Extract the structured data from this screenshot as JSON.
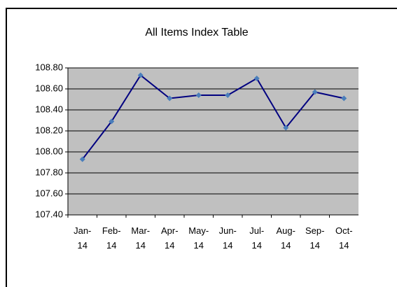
{
  "chart_data": {
    "type": "line",
    "title": "All Items Index Table",
    "categories": [
      "Jan-14",
      "Feb-14",
      "Mar-14",
      "Apr-14",
      "May-14",
      "Jun-14",
      "Jul-14",
      "Aug-14",
      "Sep-14",
      "Oct-14"
    ],
    "series": [
      {
        "color": "#000080",
        "marker_color": "#4a7ebb",
        "values": [
          107.93,
          108.29,
          108.73,
          108.51,
          108.54,
          108.54,
          108.7,
          108.23,
          108.57,
          108.51
        ]
      }
    ],
    "ylim": [
      107.4,
      108.8
    ],
    "yticks": [
      {
        "value": 107.4,
        "label": "107.40"
      },
      {
        "value": 107.6,
        "label": "107.60"
      },
      {
        "value": 107.8,
        "label": "107.80"
      },
      {
        "value": 108.0,
        "label": "108.00"
      },
      {
        "value": 108.2,
        "label": "108.20"
      },
      {
        "value": 108.4,
        "label": "108.40"
      },
      {
        "value": 108.6,
        "label": "108.60"
      },
      {
        "value": 108.8,
        "label": "108.80"
      }
    ],
    "grid": true,
    "plot_background": "#c0c0c0"
  }
}
